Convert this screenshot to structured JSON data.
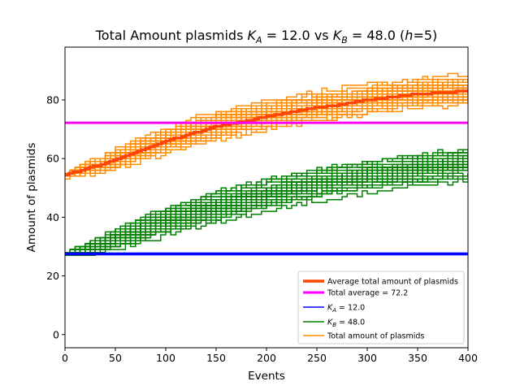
{
  "chart_data": {
    "type": "line",
    "title": "Total Amount plasmids K_A = 12.0 vs K_B = 48.0 (h=5)",
    "title_parts": {
      "prefix": "Total Amount plasmids ",
      "var_a": "K",
      "sub_a": "A",
      "mid": " = 12.0 vs ",
      "var_b": "K",
      "sub_b": "B",
      "suffix_pre": " = 48.0 (",
      "h_var": "h",
      "suffix_post": "=5)"
    },
    "xlabel": "Events",
    "ylabel": "Amount of plasmids",
    "xlim": [
      0,
      400
    ],
    "ylim": [
      -4.5,
      98
    ],
    "xticks": [
      0,
      50,
      100,
      150,
      200,
      250,
      300,
      350,
      400
    ],
    "yticks": [
      0,
      20,
      40,
      60,
      80
    ],
    "grid": false,
    "legend_position": "lower-right",
    "colors": {
      "average_total": "#ff4500",
      "total_average": "#ff00ff",
      "K_A": "#0000ff",
      "K_B": "#008000",
      "total": "#ff8c00"
    },
    "series": [
      {
        "name": "Average total amount of plasmids",
        "x": [
          0,
          25,
          50,
          75,
          100,
          125,
          150,
          175,
          200,
          225,
          250,
          275,
          300,
          325,
          350,
          375,
          400
        ],
        "values": [
          54.5,
          57,
          59.5,
          63,
          66,
          68.5,
          71,
          72.5,
          74.5,
          76,
          77.5,
          78.5,
          80,
          81,
          82,
          82.5,
          83
        ]
      },
      {
        "name": "Total average = 72.2",
        "x": [
          0,
          400
        ],
        "values": [
          72.2,
          72.2
        ]
      },
      {
        "name": "K_A = 12.0",
        "label_var": "K",
        "label_sub": "A",
        "label_rest": " = 12.0",
        "value": 27.5,
        "band": [
          27,
          28
        ]
      },
      {
        "name": "K_B = 48.0",
        "label_var": "K",
        "label_sub": "B",
        "label_rest": " = 48.0",
        "x": [
          0,
          25,
          50,
          75,
          100,
          125,
          150,
          175,
          200,
          225,
          250,
          275,
          300,
          325,
          350,
          375,
          400
        ],
        "mean": [
          27.5,
          30,
          33,
          36,
          39,
          41.5,
          44,
          46,
          48,
          50,
          51.5,
          53,
          54.5,
          55.5,
          56.5,
          57.5,
          58.5
        ],
        "spread": [
          0.5,
          3,
          4.5,
          5.5,
          6,
          6.5,
          7,
          7,
          7,
          7,
          7,
          7,
          7,
          7,
          7,
          7,
          7
        ],
        "runs": 40
      },
      {
        "name": "Total amount of plasmids",
        "x": [
          0,
          25,
          50,
          75,
          100,
          125,
          150,
          175,
          200,
          225,
          250,
          275,
          300,
          325,
          350,
          375,
          400
        ],
        "mean": [
          54.5,
          57,
          59.5,
          63,
          66,
          68.5,
          71,
          72.5,
          74.5,
          76,
          77.5,
          78.5,
          80,
          81,
          82,
          82.5,
          83
        ],
        "spread": [
          1,
          3,
          5,
          5.5,
          6,
          6.5,
          7,
          7,
          7,
          7,
          7,
          7,
          7,
          7,
          7,
          7,
          7
        ],
        "runs": 40
      }
    ]
  }
}
